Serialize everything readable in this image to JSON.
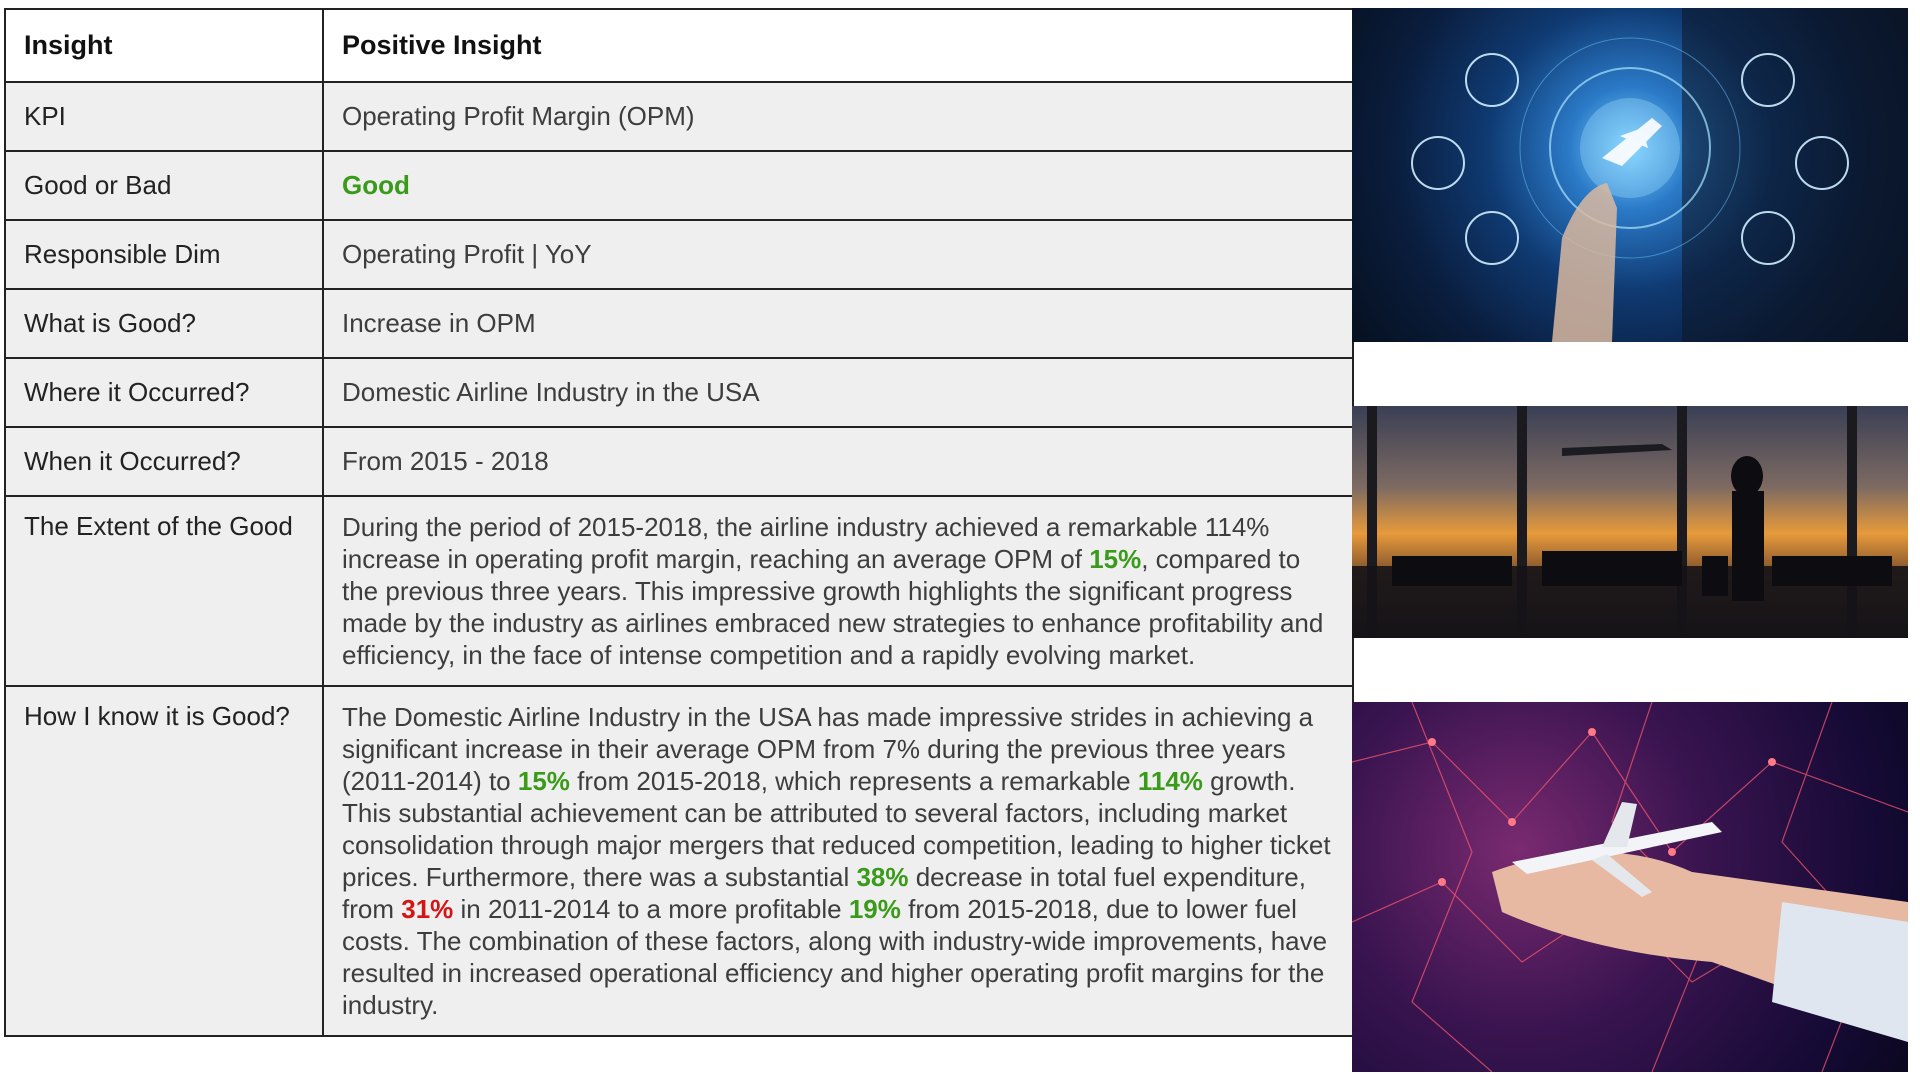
{
  "table": {
    "header": {
      "col1": "Insight",
      "col2": "Positive Insight"
    },
    "rows": {
      "kpi": {
        "label": "KPI",
        "value": "Operating Profit Margin (OPM)"
      },
      "good_or_bad": {
        "label": "Good or Bad",
        "value": "Good"
      },
      "responsible_dim": {
        "label": "Responsible Dim",
        "value": "Operating Profit | YoY"
      },
      "what_is_good": {
        "label": "What is Good?",
        "value": "Increase in OPM"
      },
      "where": {
        "label": "Where it Occurred?",
        "value": "Domestic Airline Industry in the USA"
      },
      "when": {
        "label": "When it Occurred?",
        "value": "From 2015 - 2018"
      },
      "extent": {
        "label": "The Extent of the Good",
        "text_1": "During the period of 2015-2018, the airline industry achieved a remarkable 114% increase in operating profit margin, reaching an average OPM of ",
        "highlight_1": "15%",
        "text_2": ", compared to the previous three years. This impressive growth highlights the significant progress made by the industry as airlines embraced new strategies to enhance profitability and efficiency, in the face of intense competition and a rapidly evolving market."
      },
      "how": {
        "label": "How I know it is Good?",
        "text_1": "The Domestic Airline Industry in the USA has made impressive strides in achieving a significant increase in their average OPM from 7% during the previous three years (2011-2014) to ",
        "highlight_1": "15%",
        "text_2": " from 2015-2018, which represents a remarkable ",
        "highlight_2": "114%",
        "text_3": " growth. This substantial achievement can be attributed to several factors, including market consolidation through major mergers that reduced competition, leading to higher ticket prices. Furthermore, there was a substantial ",
        "highlight_3": "38%",
        "text_4": " decrease in total fuel expenditure, from ",
        "highlight_red": "31%",
        "text_5": " in 2011-2014 to a more profitable ",
        "highlight_4": "19%",
        "text_6": " from 2015-2018, due to lower fuel costs. The combination of these factors, along with industry-wide improvements, have resulted in increased operational efficiency and higher operating profit margins for the industry."
      }
    }
  },
  "colors": {
    "positive": "#3a9a1a",
    "negative": "#d41515",
    "row_background": "#efefef"
  },
  "images": [
    {
      "icon": "airplane-touch-icon",
      "subject": "businessman touching airplane icon interface"
    },
    {
      "icon": "airport-terminal-icon",
      "subject": "traveler at airport terminal at sunset"
    },
    {
      "icon": "airplane-on-hand-icon",
      "subject": "airplane model on hand with network lines"
    }
  ]
}
